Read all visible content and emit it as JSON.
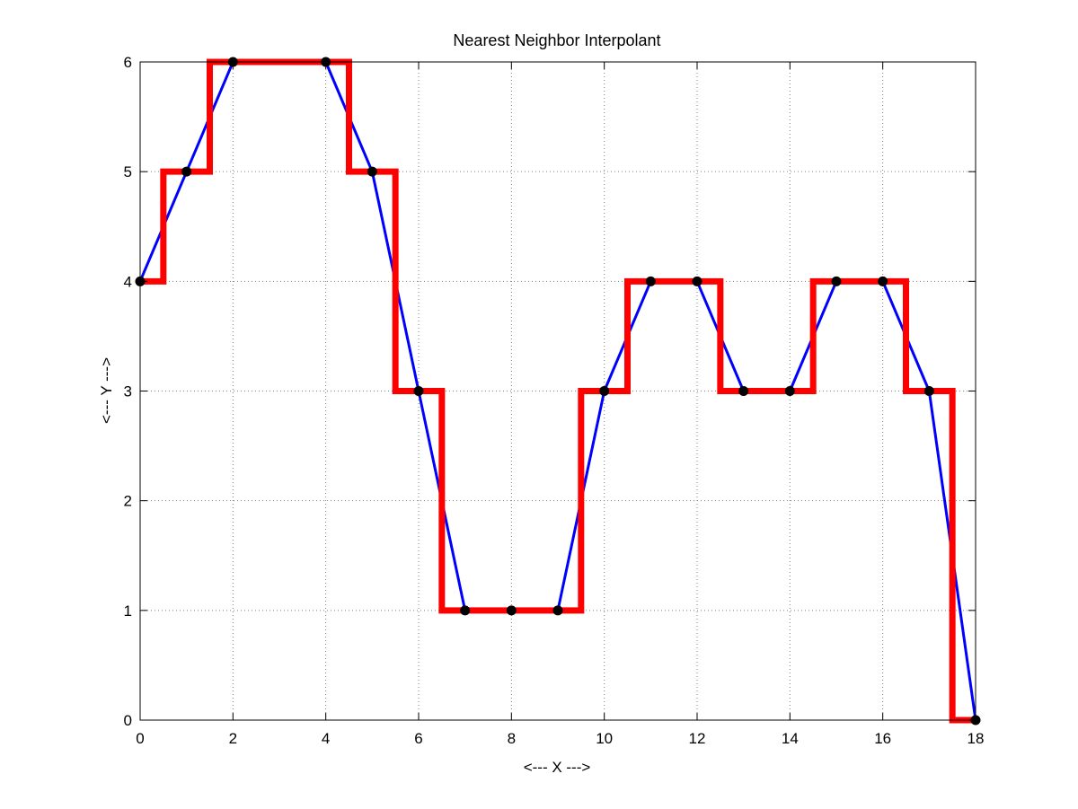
{
  "chart_data": {
    "type": "line",
    "title": "Nearest Neighbor Interpolant",
    "xlabel": "<--- X --->",
    "ylabel": "<--- Y --->",
    "xlim": [
      0,
      18
    ],
    "ylim": [
      0,
      6
    ],
    "grid": true,
    "grid_style": "dotted",
    "x_ticks": [
      0,
      2,
      4,
      6,
      8,
      10,
      12,
      14,
      16,
      18
    ],
    "y_ticks": [
      0,
      1,
      2,
      3,
      4,
      5,
      6
    ],
    "x_tick_labels": [
      "0",
      "2",
      "4",
      "6",
      "8",
      "10",
      "12",
      "14",
      "16",
      "18"
    ],
    "y_tick_labels": [
      "0",
      "1",
      "2",
      "3",
      "4",
      "5",
      "6"
    ],
    "series": [
      {
        "kind": "data-line",
        "color": "#0000ff",
        "x": [
          0,
          1,
          2,
          4,
          5,
          6,
          7,
          8,
          9,
          10,
          11,
          12,
          13,
          14,
          15,
          16,
          17,
          18
        ],
        "y": [
          4,
          5,
          6,
          6,
          5,
          3,
          1,
          1,
          1,
          3,
          4,
          4,
          3,
          3,
          4,
          4,
          3,
          0
        ]
      },
      {
        "kind": "nearest-neighbor-step",
        "color": "#ff0000",
        "x": [
          0,
          1,
          2,
          4,
          5,
          6,
          7,
          8,
          9,
          10,
          11,
          12,
          13,
          14,
          15,
          16,
          17,
          18
        ],
        "y": [
          4,
          5,
          6,
          6,
          5,
          3,
          1,
          1,
          1,
          3,
          4,
          4,
          3,
          3,
          4,
          4,
          3,
          0
        ]
      },
      {
        "kind": "data-points",
        "color": "#000000",
        "x": [
          0,
          1,
          2,
          4,
          5,
          6,
          7,
          8,
          9,
          10,
          11,
          12,
          13,
          14,
          15,
          16,
          17,
          18
        ],
        "y": [
          4,
          5,
          6,
          6,
          5,
          3,
          1,
          1,
          1,
          3,
          4,
          4,
          3,
          3,
          4,
          4,
          3,
          0
        ]
      }
    ]
  }
}
